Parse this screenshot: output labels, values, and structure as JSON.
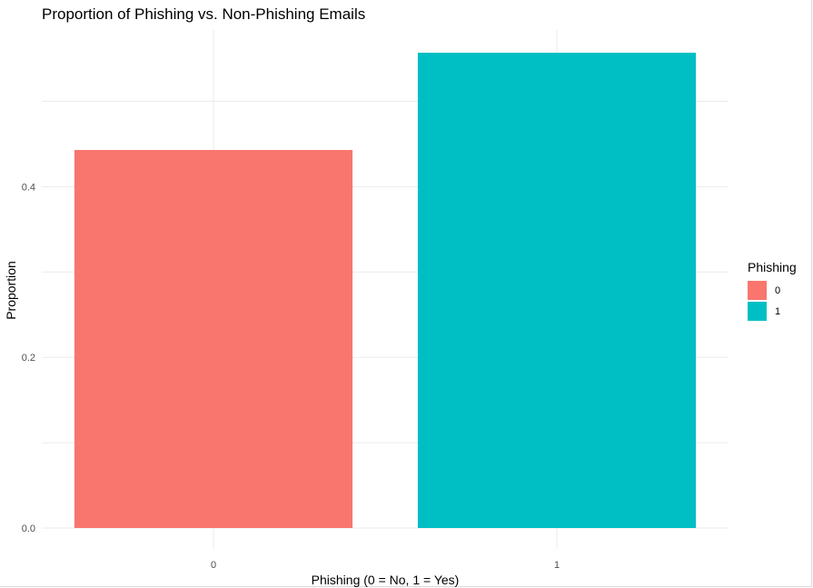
{
  "chart_data": {
    "type": "bar",
    "title": "Proportion of Phishing vs. Non-Phishing Emails",
    "xlabel": "Phishing (0 = No, 1 = Yes)",
    "ylabel": "Proportion",
    "categories": [
      "0",
      "1"
    ],
    "values": [
      0.443,
      0.557
    ],
    "colors": [
      "#F8766D",
      "#00BFC4"
    ],
    "ylim": [
      0,
      0.557
    ],
    "yticks": [
      0.0,
      0.2,
      0.4
    ],
    "ytick_labels": [
      "0.0",
      "0.2",
      "0.4"
    ],
    "grid": true,
    "legend": {
      "title": "Phishing",
      "entries": [
        "0",
        "1"
      ],
      "placement": "right"
    }
  }
}
